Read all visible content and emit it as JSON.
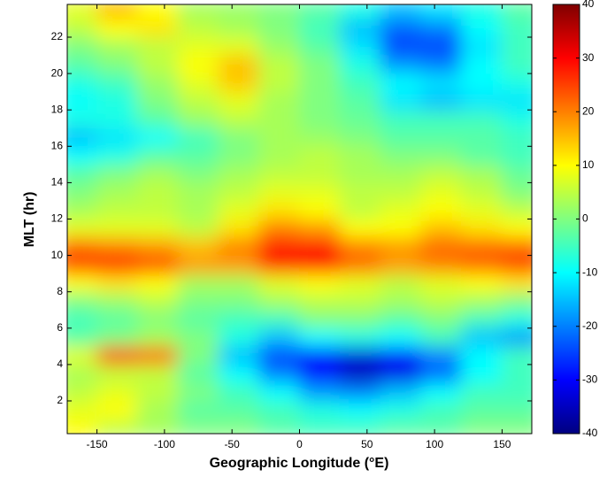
{
  "chart_data": {
    "type": "heatmap",
    "xlabel": "Geographic Longitude (°E)",
    "ylabel": "MLT (hr)",
    "x": [
      -165,
      -135,
      -105,
      -75,
      -45,
      -15,
      15,
      45,
      75,
      105,
      135,
      165
    ],
    "y": [
      0.5,
      1.5,
      2.5,
      3.5,
      4.5,
      5.5,
      6.5,
      7.5,
      8.5,
      9.5,
      10.5,
      11.5,
      12.5,
      13.5,
      14.5,
      15.5,
      16.5,
      17.5,
      18.5,
      19.5,
      20.5,
      21.5,
      22.5,
      23.5
    ],
    "z": [
      [
        10,
        5,
        3,
        0,
        0,
        -3,
        -5,
        -5,
        -3,
        -3,
        0,
        0
      ],
      [
        8,
        10,
        3,
        -3,
        -3,
        -5,
        -8,
        -10,
        -8,
        -5,
        -3,
        -3
      ],
      [
        5,
        8,
        5,
        0,
        -5,
        -10,
        -18,
        -20,
        -15,
        -10,
        -5,
        -5
      ],
      [
        3,
        5,
        5,
        -3,
        -10,
        -20,
        -30,
        -35,
        -32,
        -22,
        -10,
        -5
      ],
      [
        8,
        25,
        22,
        0,
        -15,
        -25,
        -30,
        -33,
        -30,
        -20,
        -10,
        -5
      ],
      [
        -3,
        0,
        3,
        0,
        -8,
        -15,
        -10,
        -8,
        -10,
        -5,
        -15,
        -18
      ],
      [
        -5,
        -3,
        0,
        -3,
        -5,
        -5,
        0,
        0,
        -3,
        0,
        -5,
        -8
      ],
      [
        0,
        2,
        5,
        0,
        0,
        3,
        5,
        5,
        3,
        5,
        3,
        0
      ],
      [
        10,
        12,
        10,
        3,
        3,
        8,
        10,
        8,
        5,
        8,
        10,
        12
      ],
      [
        25,
        28,
        25,
        18,
        18,
        28,
        30,
        22,
        18,
        20,
        22,
        25
      ],
      [
        22,
        20,
        18,
        15,
        20,
        28,
        28,
        20,
        18,
        22,
        22,
        22
      ],
      [
        8,
        8,
        8,
        5,
        12,
        20,
        18,
        10,
        10,
        15,
        12,
        10
      ],
      [
        3,
        5,
        5,
        3,
        8,
        12,
        10,
        5,
        8,
        10,
        8,
        5
      ],
      [
        0,
        3,
        5,
        3,
        5,
        8,
        8,
        5,
        5,
        8,
        5,
        0
      ],
      [
        -3,
        0,
        3,
        0,
        3,
        5,
        5,
        3,
        3,
        5,
        3,
        -2
      ],
      [
        -10,
        -8,
        -3,
        -3,
        0,
        3,
        5,
        3,
        0,
        0,
        -3,
        -5
      ],
      [
        -15,
        -12,
        -10,
        -5,
        0,
        3,
        2,
        0,
        -3,
        -3,
        -3,
        -5
      ],
      [
        -8,
        -8,
        -3,
        2,
        5,
        3,
        0,
        -2,
        -5,
        -5,
        -5,
        -8
      ],
      [
        -10,
        -8,
        0,
        5,
        8,
        3,
        0,
        -3,
        -12,
        -15,
        -12,
        -12
      ],
      [
        -8,
        -5,
        2,
        8,
        14,
        5,
        0,
        -5,
        -10,
        -12,
        -10,
        -8
      ],
      [
        -3,
        0,
        5,
        10,
        15,
        5,
        0,
        -8,
        -18,
        -20,
        -10,
        -5
      ],
      [
        0,
        3,
        5,
        8,
        8,
        2,
        -3,
        -12,
        -25,
        -25,
        -12,
        -5
      ],
      [
        5,
        10,
        12,
        5,
        3,
        0,
        -5,
        -15,
        -22,
        -20,
        -10,
        -5
      ],
      [
        8,
        15,
        10,
        3,
        2,
        0,
        -3,
        -8,
        -15,
        -12,
        -8,
        -3
      ]
    ],
    "xlim": [
      -172,
      172
    ],
    "ylim": [
      0.2,
      23.8
    ],
    "xticks": [
      -150,
      -100,
      -50,
      0,
      50,
      100,
      150
    ],
    "yticks": [
      2,
      4,
      6,
      8,
      10,
      12,
      14,
      16,
      18,
      20,
      22
    ],
    "colormap": "jet",
    "clim": [
      -40,
      40
    ],
    "cticks": [
      -40,
      -30,
      -20,
      -10,
      0,
      10,
      20,
      30,
      40
    ]
  }
}
